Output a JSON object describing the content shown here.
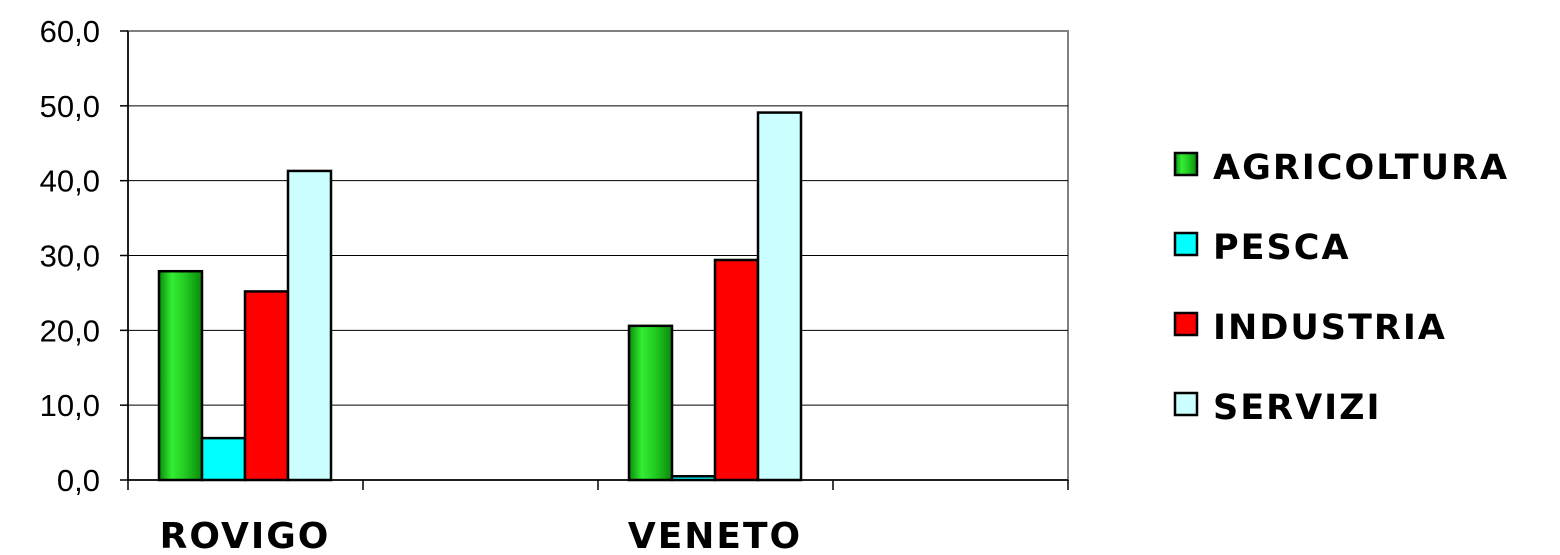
{
  "chart_data": {
    "type": "bar",
    "title": "",
    "xlabel": "",
    "ylabel": "",
    "categories": [
      "ROVIGO",
      "VENETO"
    ],
    "series": [
      {
        "name": "AGRICOLTURA",
        "values": [
          27.9,
          20.6
        ],
        "color": "#22cc22"
      },
      {
        "name": "PESCA",
        "values": [
          5.6,
          0.5
        ],
        "color": "#00ffff"
      },
      {
        "name": "INDUSTRIA",
        "values": [
          25.2,
          29.4
        ],
        "color": "#ff0000"
      },
      {
        "name": "SERVIZI",
        "values": [
          41.3,
          49.1
        ],
        "color": "#ccffff"
      }
    ],
    "ylim": [
      0,
      60
    ],
    "yticks": [
      "0,0",
      "10,0",
      "20,0",
      "30,0",
      "40,0",
      "50,0",
      "60,0"
    ],
    "grid": true,
    "legend_position": "right"
  }
}
